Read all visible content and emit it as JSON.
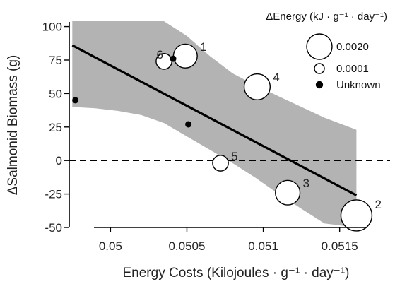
{
  "chart_data": {
    "type": "scatter",
    "xlabel": "Energy Costs (Kilojoules · g⁻¹ · day⁻¹)",
    "ylabel": "ΔSalmonid Biomass (g)",
    "xlim": [
      0.04973,
      0.05183
    ],
    "ylim": [
      -50,
      104
    ],
    "xticks": [
      0.05,
      0.0505,
      0.051,
      0.0515
    ],
    "xtick_labels": [
      "0.05",
      "0.0505",
      "0.051",
      "0.0515"
    ],
    "yticks": [
      -50,
      -25,
      0,
      25,
      50,
      75,
      100
    ],
    "ytick_labels": [
      "-50",
      "-25",
      "0",
      "25",
      "50",
      "75",
      "100"
    ],
    "reference_line": {
      "y": 0,
      "style": "dashed"
    },
    "regression_line": {
      "x": [
        0.04975,
        0.05161
      ],
      "y": [
        86,
        -26
      ]
    },
    "confidence_band": {
      "x": [
        0.04975,
        0.0499,
        0.05005,
        0.0502,
        0.05035,
        0.0505,
        0.05065,
        0.0508,
        0.05095,
        0.0511,
        0.05125,
        0.0514,
        0.05161
      ],
      "upper": [
        104,
        104,
        104,
        104,
        104,
        93,
        78,
        65,
        56,
        48,
        40,
        32,
        23
      ],
      "lower": [
        40,
        39,
        37,
        34,
        28,
        18,
        8,
        -2,
        -13,
        -25,
        -36,
        -47,
        -50
      ]
    },
    "points": [
      {
        "label": "1",
        "x": 0.05049,
        "y": 78,
        "energy": 0.0008
      },
      {
        "label": "2",
        "x": 0.05161,
        "y": -41,
        "energy": 0.002
      },
      {
        "label": "3",
        "x": 0.05116,
        "y": -24,
        "energy": 0.0009
      },
      {
        "label": "4",
        "x": 0.05096,
        "y": 55,
        "energy": 0.0011
      },
      {
        "label": "5",
        "x": 0.05072,
        "y": -2,
        "energy": 0.0001
      },
      {
        "label": "6",
        "x": 0.05035,
        "y": 74,
        "energy": 0.0001
      },
      {
        "label": "",
        "x": 0.05041,
        "y": 76,
        "energy": null
      },
      {
        "label": "",
        "x": 0.04977,
        "y": 45,
        "energy": null
      },
      {
        "label": "",
        "x": 0.05051,
        "y": 27,
        "energy": null
      }
    ],
    "legend": {
      "position": "top-right",
      "title": "ΔEnergy (kJ · g⁻¹ · day⁻¹)",
      "entries": [
        {
          "label": "0.0020",
          "kind": "large-open-circle"
        },
        {
          "label": "0.0001",
          "kind": "small-open-circle"
        },
        {
          "label": "Unknown",
          "kind": "filled-dot"
        }
      ]
    },
    "colors": {
      "band": "#b3b3b3",
      "line": "#000000",
      "point_fill": "#ffffff",
      "point_stroke": "#000000"
    },
    "grid": false
  }
}
